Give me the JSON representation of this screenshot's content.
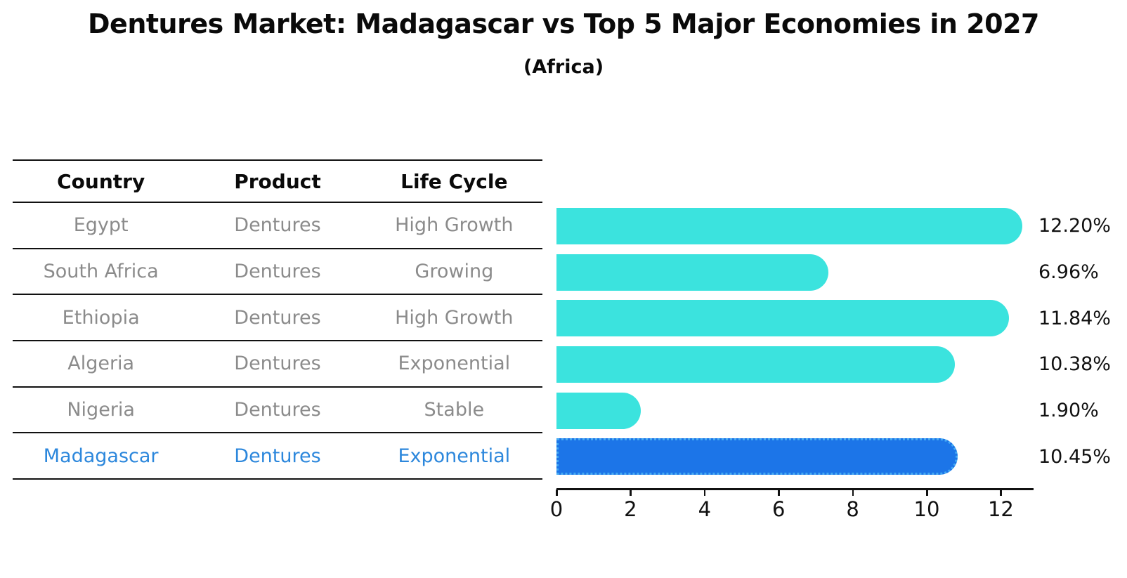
{
  "header": {
    "title": "Dentures Market: Madagascar vs Top 5 Major Economies in 2027",
    "subtitle": "(Africa)"
  },
  "table": {
    "columns": [
      "Country",
      "Product",
      "Life Cycle"
    ],
    "rows": [
      {
        "country": "Egypt",
        "product": "Dentures",
        "life_cycle": "High Growth",
        "highlight": false
      },
      {
        "country": "South Africa",
        "product": "Dentures",
        "life_cycle": "Growing",
        "highlight": false
      },
      {
        "country": "Ethiopia",
        "product": "Dentures",
        "life_cycle": "High Growth",
        "highlight": false
      },
      {
        "country": "Algeria",
        "product": "Dentures",
        "life_cycle": "Exponential",
        "highlight": false
      },
      {
        "country": "Nigeria",
        "product": "Dentures",
        "life_cycle": "Stable",
        "highlight": false
      },
      {
        "country": "Madagascar",
        "product": "Dentures",
        "life_cycle": "Exponential",
        "highlight": true
      }
    ]
  },
  "chart_data": {
    "type": "bar",
    "orientation": "horizontal",
    "title": "Dentures Market: Madagascar vs Top 5 Major Economies in 2027",
    "subtitle": "(Africa)",
    "categories": [
      "Egypt",
      "South Africa",
      "Ethiopia",
      "Algeria",
      "Nigeria",
      "Madagascar"
    ],
    "values": [
      12.2,
      6.96,
      11.84,
      10.38,
      1.9,
      10.45
    ],
    "value_labels": [
      "12.20%",
      "6.96%",
      "11.84%",
      "10.38%",
      "1.90%",
      "10.45%"
    ],
    "x_ticks": [
      0,
      2,
      4,
      6,
      8,
      10,
      12
    ],
    "xlim": [
      0,
      12.9
    ],
    "grid": false,
    "legend": false,
    "highlight_index": 5,
    "colors": {
      "bar": "#3be3de",
      "highlight_bar": "#1c75e8",
      "highlight_edge": "#45aaf2",
      "axis": "#111111",
      "value_label": "#111111",
      "table_text": "#8b8b8b",
      "highlight_text": "#2c87dc"
    }
  }
}
